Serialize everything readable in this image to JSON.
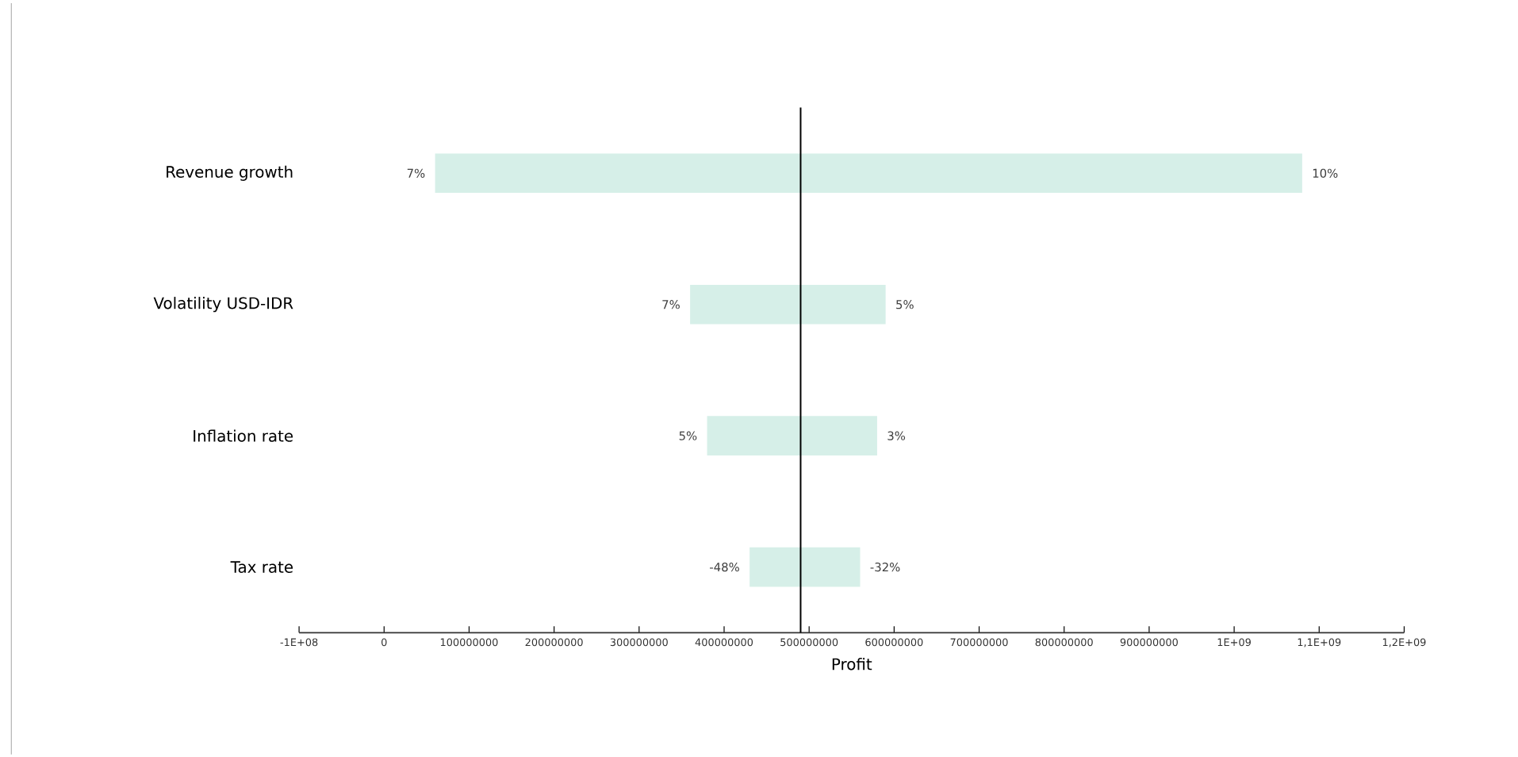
{
  "chart_data": {
    "type": "bar",
    "orientation": "horizontal",
    "xlabel": "Profit",
    "categories": [
      "Revenue growth",
      "Volatility USD-IDR",
      "Inflation rate",
      "Tax rate"
    ],
    "base": [
      60000000,
      360000000,
      380000000,
      430000000
    ],
    "values": [
      1020000000,
      230000000,
      200000000,
      130000000
    ],
    "color": "#d6efe8",
    "xlim": [
      -100000000,
      1200000000
    ],
    "xticks": [
      {
        "value": -100000000,
        "label": "-1E+08"
      },
      0,
      100000000,
      200000000,
      300000000,
      400000000,
      500000000,
      600000000,
      700000000,
      800000000,
      900000000,
      {
        "value": 1000000000,
        "label": "1E+09"
      },
      {
        "value": 1100000000,
        "label": "1,1E+09"
      },
      {
        "value": 1200000000,
        "label": "1,2E+09"
      }
    ],
    "ref_lines": [
      {
        "axis": "x",
        "value": 490000000,
        "color": "#000000"
      }
    ],
    "annotations": [
      {
        "text": "7%",
        "x": 60000000,
        "y": "Revenue growth"
      },
      {
        "text": "10%",
        "x": 1080000000,
        "y": "Revenue growth"
      },
      {
        "text": "7%",
        "x": 360000000,
        "y": "Volatility USD-IDR"
      },
      {
        "text": "5%",
        "x": 590000000,
        "y": "Volatility USD-IDR"
      },
      {
        "text": "5%",
        "x": 380000000,
        "y": "Inflation rate"
      },
      {
        "text": "3%",
        "x": 580000000,
        "y": "Inflation rate"
      },
      {
        "text": "-48%",
        "x": 430000000,
        "y": "Tax rate"
      },
      {
        "text": "-32%",
        "x": 560000000,
        "y": "Tax rate"
      }
    ]
  }
}
